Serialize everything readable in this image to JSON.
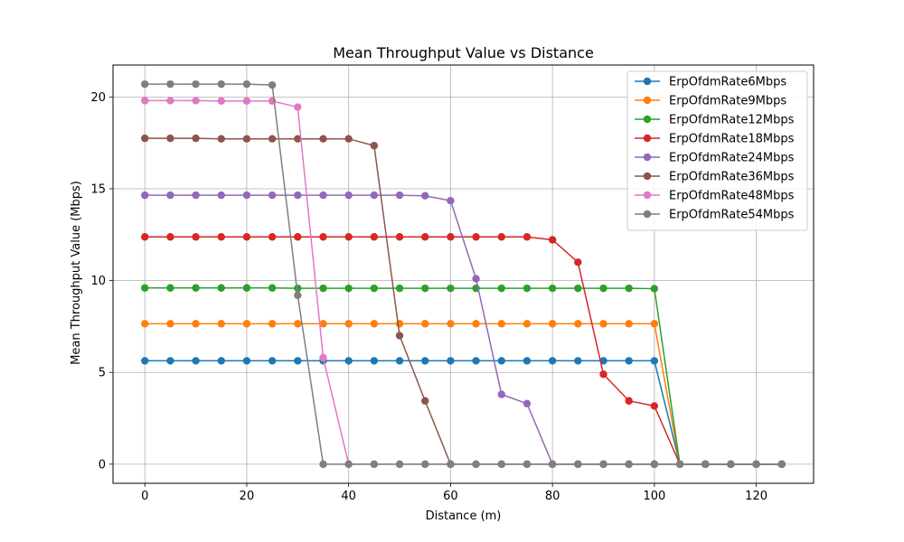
{
  "chart_data": {
    "type": "line",
    "title": "Mean Throughput Value vs Distance",
    "xlabel": "Distance (m)",
    "ylabel": "Mean Throughput Value (Mbps)",
    "xlim": [
      -6.25,
      131.25
    ],
    "ylim": [
      -1.04,
      21.74
    ],
    "xticks": [
      0,
      20,
      40,
      60,
      80,
      100,
      120
    ],
    "yticks": [
      0,
      5,
      10,
      15,
      20
    ],
    "grid": true,
    "legend_position": "top-right",
    "x": [
      0,
      5,
      10,
      15,
      20,
      25,
      30,
      35,
      40,
      45,
      50,
      55,
      60,
      65,
      70,
      75,
      80,
      85,
      90,
      95,
      100,
      105,
      110,
      115,
      120,
      125
    ],
    "series": [
      {
        "name": "ErpOfdmRate6Mbps",
        "color": "#1f77b4",
        "values": [
          5.63,
          5.63,
          5.63,
          5.63,
          5.63,
          5.63,
          5.63,
          5.63,
          5.63,
          5.63,
          5.63,
          5.63,
          5.63,
          5.63,
          5.63,
          5.63,
          5.63,
          5.63,
          5.63,
          5.63,
          5.63,
          0,
          0,
          0,
          0,
          0
        ]
      },
      {
        "name": "ErpOfdmRate9Mbps",
        "color": "#ff7f0e",
        "values": [
          7.65,
          7.65,
          7.65,
          7.65,
          7.65,
          7.65,
          7.65,
          7.65,
          7.65,
          7.65,
          7.65,
          7.65,
          7.65,
          7.65,
          7.65,
          7.65,
          7.65,
          7.65,
          7.65,
          7.65,
          7.65,
          0,
          0,
          0,
          0,
          0
        ]
      },
      {
        "name": "ErpOfdmRate12Mbps",
        "color": "#2ca02c",
        "values": [
          9.6,
          9.6,
          9.6,
          9.6,
          9.6,
          9.6,
          9.58,
          9.58,
          9.58,
          9.58,
          9.58,
          9.58,
          9.58,
          9.58,
          9.58,
          9.58,
          9.58,
          9.58,
          9.58,
          9.58,
          9.56,
          0,
          0,
          0,
          0,
          0
        ]
      },
      {
        "name": "ErpOfdmRate18Mbps",
        "color": "#d62728",
        "values": [
          12.38,
          12.38,
          12.38,
          12.38,
          12.38,
          12.38,
          12.38,
          12.38,
          12.38,
          12.38,
          12.38,
          12.38,
          12.38,
          12.38,
          12.38,
          12.38,
          12.22,
          11.0,
          4.9,
          3.45,
          3.17,
          0,
          0,
          0,
          0,
          0
        ]
      },
      {
        "name": "ErpOfdmRate24Mbps",
        "color": "#9467bd",
        "values": [
          14.65,
          14.65,
          14.65,
          14.65,
          14.65,
          14.65,
          14.65,
          14.65,
          14.65,
          14.65,
          14.65,
          14.62,
          14.35,
          10.1,
          3.8,
          3.3,
          0,
          0,
          0,
          0,
          0,
          0,
          0,
          0,
          0,
          0
        ]
      },
      {
        "name": "ErpOfdmRate36Mbps",
        "color": "#8c564b",
        "values": [
          17.75,
          17.75,
          17.75,
          17.72,
          17.72,
          17.72,
          17.72,
          17.72,
          17.72,
          17.35,
          7.0,
          3.45,
          0,
          0,
          0,
          0,
          0,
          0,
          0,
          0,
          0,
          0,
          0,
          0,
          0,
          0
        ]
      },
      {
        "name": "ErpOfdmRate48Mbps",
        "color": "#e377c2",
        "values": [
          19.8,
          19.8,
          19.8,
          19.78,
          19.78,
          19.78,
          19.45,
          5.8,
          0,
          0,
          0,
          0,
          0,
          0,
          0,
          0,
          0,
          0,
          0,
          0,
          0,
          0,
          0,
          0,
          0,
          0
        ]
      },
      {
        "name": "ErpOfdmRate54Mbps",
        "color": "#7f7f7f",
        "values": [
          20.7,
          20.7,
          20.7,
          20.7,
          20.7,
          20.65,
          9.2,
          0,
          0,
          0,
          0,
          0,
          0,
          0,
          0,
          0,
          0,
          0,
          0,
          0,
          0,
          0,
          0,
          0,
          0,
          0
        ]
      }
    ]
  }
}
